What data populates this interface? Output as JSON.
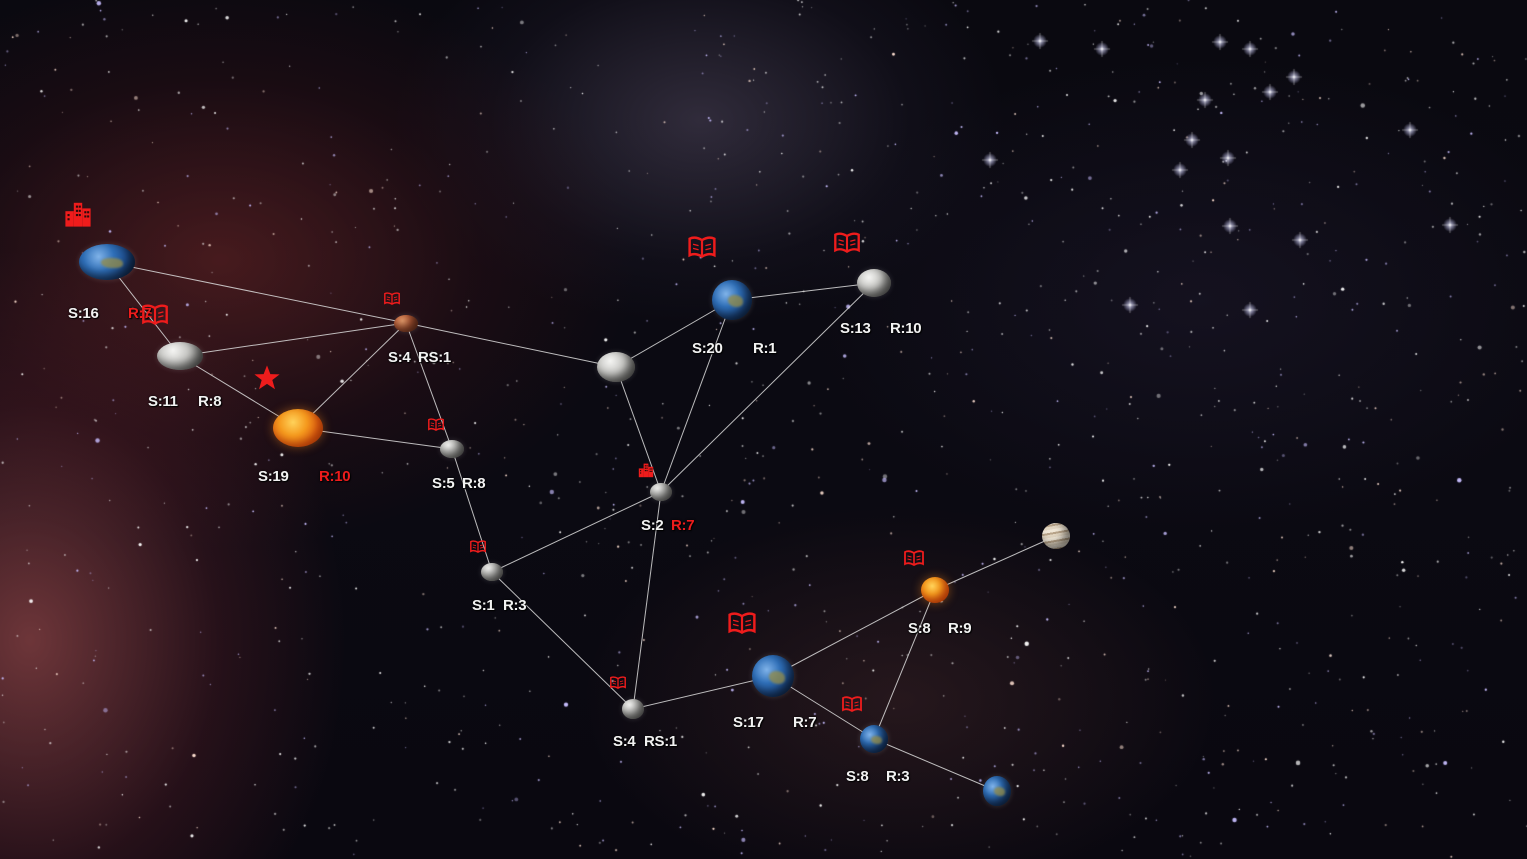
{
  "map": {
    "colors": {
      "link": "#dcdcdc",
      "label": "#f2f2f2",
      "alert": "#ee1c1c"
    },
    "nodes": [
      {
        "id": "n1",
        "type": "earth",
        "labels": [
          {
            "text": "S:16",
            "red": false
          },
          {
            "text": "R:7",
            "red": true
          }
        ],
        "icon": "buildings-icon"
      },
      {
        "id": "n2",
        "type": "moon",
        "labels": [
          {
            "text": "S:11",
            "red": false
          },
          {
            "text": "R:8",
            "red": false
          }
        ],
        "icon": "book-icon"
      },
      {
        "id": "n3",
        "type": "mars",
        "labels": [
          {
            "text": "S:4",
            "red": false
          },
          {
            "text": "RS:1",
            "red": false
          }
        ],
        "icon": "book-icon"
      },
      {
        "id": "n4",
        "type": "sun",
        "labels": [
          {
            "text": "S:19",
            "red": false
          },
          {
            "text": "R:10",
            "red": true
          }
        ],
        "icon": "star-icon"
      },
      {
        "id": "n5",
        "type": "moon",
        "labels": [
          {
            "text": "S:5",
            "red": false
          },
          {
            "text": "R:8",
            "red": false
          }
        ],
        "icon": "book-icon"
      },
      {
        "id": "n6",
        "type": "moon",
        "labels": [],
        "icon": ""
      },
      {
        "id": "n7",
        "type": "earth",
        "labels": [
          {
            "text": "S:20",
            "red": false
          },
          {
            "text": "R:1",
            "red": false
          }
        ],
        "icon": "book-icon"
      },
      {
        "id": "n8",
        "type": "moon",
        "labels": [
          {
            "text": "S:13",
            "red": false
          },
          {
            "text": "R:10",
            "red": false
          }
        ],
        "icon": "book-icon"
      },
      {
        "id": "n9",
        "type": "moon",
        "labels": [
          {
            "text": "S:2",
            "red": false
          },
          {
            "text": "R:7",
            "red": true
          }
        ],
        "icon": "buildings-icon"
      },
      {
        "id": "n10",
        "type": "moon",
        "labels": [
          {
            "text": "S:1",
            "red": false
          },
          {
            "text": "R:3",
            "red": false
          }
        ],
        "icon": "book-icon"
      },
      {
        "id": "n11",
        "type": "moon",
        "labels": [
          {
            "text": "S:4",
            "red": false
          },
          {
            "text": "RS:1",
            "red": false
          }
        ],
        "icon": "book-icon"
      },
      {
        "id": "n12",
        "type": "earth",
        "labels": [
          {
            "text": "S:17",
            "red": false
          },
          {
            "text": "R:7",
            "red": false
          }
        ],
        "icon": "book-icon"
      },
      {
        "id": "n13",
        "type": "sun",
        "labels": [
          {
            "text": "S:8",
            "red": false
          },
          {
            "text": "R:9",
            "red": false
          }
        ],
        "icon": "book-icon"
      },
      {
        "id": "n14",
        "type": "jupiter",
        "labels": [],
        "icon": ""
      },
      {
        "id": "n15",
        "type": "earth",
        "labels": [
          {
            "text": "S:8",
            "red": false
          },
          {
            "text": "R:3",
            "red": false
          }
        ],
        "icon": "book-icon"
      },
      {
        "id": "n16",
        "type": "earth",
        "labels": [],
        "icon": ""
      }
    ],
    "links": [
      [
        "n1",
        "n2"
      ],
      [
        "n1",
        "n3"
      ],
      [
        "n2",
        "n3"
      ],
      [
        "n2",
        "n4"
      ],
      [
        "n3",
        "n4"
      ],
      [
        "n3",
        "n5"
      ],
      [
        "n3",
        "n6"
      ],
      [
        "n4",
        "n5"
      ],
      [
        "n5",
        "n10"
      ],
      [
        "n6",
        "n7"
      ],
      [
        "n6",
        "n9"
      ],
      [
        "n7",
        "n8"
      ],
      [
        "n7",
        "n9"
      ],
      [
        "n8",
        "n9"
      ],
      [
        "n9",
        "n10"
      ],
      [
        "n9",
        "n11"
      ],
      [
        "n10",
        "n11"
      ],
      [
        "n11",
        "n12"
      ],
      [
        "n12",
        "n13"
      ],
      [
        "n12",
        "n15"
      ],
      [
        "n13",
        "n14"
      ],
      [
        "n13",
        "n15"
      ],
      [
        "n15",
        "n16"
      ]
    ]
  }
}
